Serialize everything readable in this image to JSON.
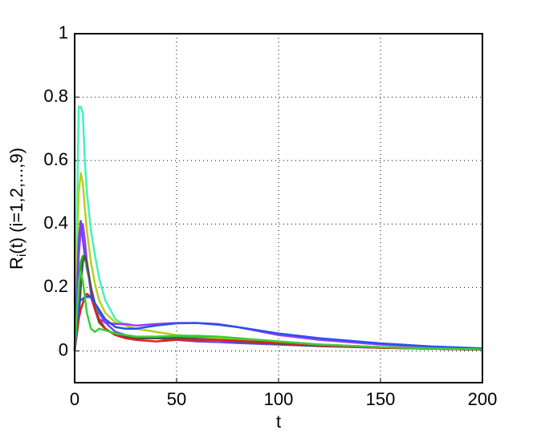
{
  "chart_data": {
    "type": "line",
    "xlabel": "t",
    "ylabel": {
      "main": "R",
      "sub": "i",
      "rest": "(t)  (i=1,2,...,9)"
    },
    "x": [
      0,
      2,
      3,
      4,
      5,
      6,
      8,
      10,
      12,
      15,
      20,
      25,
      30,
      40,
      50,
      60,
      70,
      80,
      100,
      120,
      150,
      175,
      200
    ],
    "series": [
      {
        "color": "#48f0b8",
        "values": [
          0,
          0.77,
          0.77,
          0.75,
          0.6,
          0.5,
          0.38,
          0.3,
          0.23,
          0.16,
          0.1,
          0.08,
          0.07,
          0.06,
          0.05,
          0.045,
          0.04,
          0.035,
          0.025,
          0.02,
          0.012,
          0.008,
          0.005
        ]
      },
      {
        "color": "#b4d21e",
        "values": [
          0,
          0.5,
          0.56,
          0.53,
          0.45,
          0.38,
          0.28,
          0.21,
          0.16,
          0.12,
          0.09,
          0.08,
          0.07,
          0.06,
          0.05,
          0.045,
          0.04,
          0.035,
          0.025,
          0.02,
          0.012,
          0.008,
          0.005
        ]
      },
      {
        "color": "#a03cf0",
        "values": [
          0,
          0.3,
          0.38,
          0.4,
          0.35,
          0.28,
          0.18,
          0.13,
          0.1,
          0.09,
          0.085,
          0.085,
          0.08,
          0.085,
          0.088,
          0.088,
          0.085,
          0.075,
          0.05,
          0.035,
          0.02,
          0.012,
          0.007
        ]
      },
      {
        "color": "#6a46f0",
        "values": [
          0,
          0.35,
          0.41,
          0.35,
          0.3,
          0.26,
          0.2,
          0.15,
          0.12,
          0.09,
          0.06,
          0.05,
          0.045,
          0.04,
          0.035,
          0.03,
          0.028,
          0.025,
          0.02,
          0.015,
          0.01,
          0.007,
          0.004
        ]
      },
      {
        "color": "#20b428",
        "values": [
          0,
          0.2,
          0.28,
          0.3,
          0.29,
          0.27,
          0.2,
          0.14,
          0.1,
          0.07,
          0.05,
          0.045,
          0.04,
          0.04,
          0.045,
          0.045,
          0.045,
          0.04,
          0.03,
          0.02,
          0.012,
          0.008,
          0.005
        ]
      },
      {
        "color": "#505050",
        "values": [
          0,
          0.1,
          0.2,
          0.28,
          0.3,
          0.28,
          0.2,
          0.13,
          0.09,
          0.07,
          0.05,
          0.045,
          0.04,
          0.04,
          0.04,
          0.038,
          0.035,
          0.03,
          0.022,
          0.016,
          0.01,
          0.007,
          0.004
        ]
      },
      {
        "color": "#e02020",
        "values": [
          0,
          0.1,
          0.13,
          0.15,
          0.17,
          0.18,
          0.17,
          0.13,
          0.1,
          0.07,
          0.05,
          0.04,
          0.035,
          0.03,
          0.035,
          0.035,
          0.035,
          0.032,
          0.025,
          0.018,
          0.01,
          0.007,
          0.004
        ]
      },
      {
        "color": "#2850f0",
        "values": [
          0,
          0.15,
          0.16,
          0.165,
          0.17,
          0.17,
          0.17,
          0.15,
          0.13,
          0.1,
          0.075,
          0.07,
          0.07,
          0.08,
          0.087,
          0.088,
          0.083,
          0.075,
          0.055,
          0.04,
          0.024,
          0.014,
          0.008
        ]
      },
      {
        "color": "#38d038",
        "values": [
          0,
          0.22,
          0.25,
          0.22,
          0.17,
          0.12,
          0.07,
          0.06,
          0.07,
          0.065,
          0.055,
          0.05,
          0.045,
          0.045,
          0.048,
          0.048,
          0.045,
          0.04,
          0.03,
          0.02,
          0.012,
          0.008,
          0.005
        ]
      }
    ],
    "xlim": [
      0,
      200
    ],
    "xticks": [
      0,
      50,
      100,
      150,
      200
    ],
    "ylim": [
      -0.1,
      1
    ],
    "yticks": [
      0,
      0.2,
      0.4,
      0.6,
      0.8,
      1
    ],
    "grid": true
  }
}
